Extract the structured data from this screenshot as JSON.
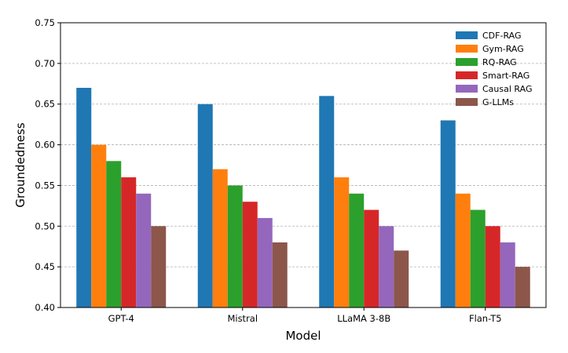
{
  "chart_data": {
    "type": "bar",
    "title": "",
    "xlabel": "Model",
    "ylabel": "Groundedness",
    "categories": [
      "GPT-4",
      "Mistral",
      "LLaMA 3-8B",
      "Flan-T5"
    ],
    "ylim": [
      0.4,
      0.75
    ],
    "yticks": [
      "0.40",
      "0.45",
      "0.50",
      "0.55",
      "0.60",
      "0.65",
      "0.70",
      "0.75"
    ],
    "grid": "horizontal-dashed",
    "legend_position": "top-right",
    "series": [
      {
        "name": "CDF-RAG",
        "color": "#1f77b4",
        "values": [
          0.67,
          0.65,
          0.66,
          0.63
        ]
      },
      {
        "name": "Gym-RAG",
        "color": "#ff7f0e",
        "values": [
          0.6,
          0.57,
          0.56,
          0.54
        ]
      },
      {
        "name": "RQ-RAG",
        "color": "#2ca02c",
        "values": [
          0.58,
          0.55,
          0.54,
          0.52
        ]
      },
      {
        "name": "Smart-RAG",
        "color": "#d62728",
        "values": [
          0.56,
          0.53,
          0.52,
          0.5
        ]
      },
      {
        "name": "Causal RAG",
        "color": "#9467bd",
        "values": [
          0.54,
          0.51,
          0.5,
          0.48
        ]
      },
      {
        "name": "G-LLMs",
        "color": "#8c564b",
        "values": [
          0.5,
          0.48,
          0.47,
          0.45
        ]
      }
    ]
  }
}
